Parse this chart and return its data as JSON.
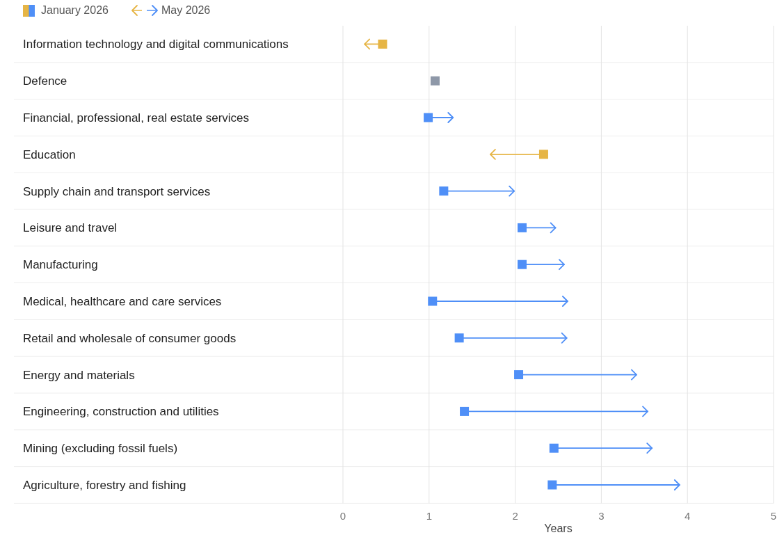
{
  "chart_data": {
    "type": "scatter",
    "orientation": "horizontal",
    "xlabel": "Years",
    "xlim": [
      0,
      5
    ],
    "xticks": [
      0,
      1,
      2,
      3,
      4,
      5
    ],
    "grid": "x",
    "legend": "top left",
    "categories": [
      "Information technology and digital communications",
      "Defence",
      "Financial, professional, real estate services",
      "Education",
      "Supply chain and transport services",
      "Leisure and travel",
      "Manufacturing",
      "Medical, healthcare and care services",
      "Retail and wholesale of consumer goods",
      "Energy and materials",
      "Engineering, construction and utilities",
      "Mining (excluding fossil fuels)",
      "Agriculture, forestry and fishing"
    ],
    "series": [
      {
        "name": "January 2026",
        "marker": "square",
        "colors": [
          "#e6b545",
          "#8e98a8",
          "#4f8ff7",
          "#e6b545",
          "#4f8ff7",
          "#4f8ff7",
          "#4f8ff7",
          "#4f8ff7",
          "#4f8ff7",
          "#4f8ff7",
          "#4f8ff7",
          "#4f8ff7",
          "#4f8ff7"
        ],
        "values": [
          0.46,
          1.07,
          0.99,
          2.33,
          1.17,
          2.08,
          2.08,
          1.04,
          1.35,
          2.04,
          1.41,
          2.45,
          2.43
        ]
      },
      {
        "name": "May 2026",
        "colors": [
          "#e6b545",
          null,
          "#4f8ff7",
          "#e6b545",
          "#4f8ff7",
          "#4f8ff7",
          "#4f8ff7",
          "#4f8ff7",
          "#4f8ff7",
          "#4f8ff7",
          "#4f8ff7",
          "#4f8ff7",
          "#4f8ff7"
        ],
        "values": [
          0.28,
          null,
          1.25,
          1.74,
          1.96,
          2.44,
          2.54,
          2.58,
          2.57,
          3.38,
          3.51,
          3.56,
          3.88
        ]
      }
    ]
  }
}
